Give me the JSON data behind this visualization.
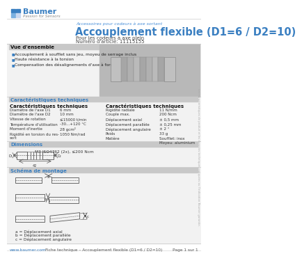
{
  "bg_color": "#ffffff",
  "header": {
    "logo_text": "Baumer",
    "logo_sub": "Passion for Sensors",
    "accessory_label": "Accessoires pour codeurs à axe sortant",
    "title": "Accouplement flexible (D1=6 / D2=10)",
    "subtitle1": "Pour les codeurs à axe plein",
    "subtitle2": "Numéro d'article: 11115155",
    "header_blue": "#4a90d9",
    "title_blue": "#3a7fc1"
  },
  "section_vue": {
    "label": "Vue d'ensemble",
    "bullets": [
      "Accouplement à soufflet sans jeu, moyeu de serrage inclus",
      "Haute résistance à la torsion",
      "Compensation des désalignements d'axe à force de rappel minimale"
    ]
  },
  "section_caract": {
    "label": "Caractéristiques techniques",
    "col1_title": "Caractéristiques techniques",
    "col2_title": "Caractéristiques techniques",
    "col1": [
      [
        "Diamètre de l'axe D1",
        "6 mm"
      ],
      [
        "Diamètre de l'axe D2",
        "10 mm"
      ],
      [
        "Vitesse de rotation",
        "≤15000 t/min"
      ],
      [
        "Température d'utilisation",
        "-30...+120 °C"
      ],
      [
        "Moment d'inertie",
        "28 gcm²"
      ],
      [
        "Rigidité en torsion du res-\nsort",
        "1050 Nm/rad"
      ]
    ],
    "col2": [
      [
        "Rigidité radiale",
        "11 N/mm"
      ],
      [
        "Couple max.",
        "200 Ncm"
      ],
      [
        "Déplacement axial",
        "± 0,5 mm"
      ],
      [
        "Déplacement parallèle",
        "± 0,25 mm"
      ],
      [
        "Déplacement angulaire",
        "± 2 °"
      ],
      [
        "Poids",
        "33 g"
      ],
      [
        "Matière",
        "Soufflet: inox\nMoyeu: aluminium"
      ]
    ]
  },
  "section_dim": {
    "label": "Dimensions",
    "dim_text": "M3 ISO4762 (2x), ≤200 Ncm"
  },
  "section_montage": {
    "label": "Schéma de montage",
    "legend": [
      "a = Déplacement axial",
      "b = Déplacement parallèle",
      "c = Déplacement angulaire"
    ]
  },
  "footer": {
    "url": "www.baumer.com",
    "center_text": "Fiche technique – Accouplement flexible (D1=6 / D2=10)",
    "right_text": "Page 1 sur 1"
  },
  "sidebar_text": "Les caractéristiques de produit et les données techniques indiquées ou l'indication Baumer garantie.",
  "blue_header": "#4a90d9",
  "blue_title": "#3a7fc1",
  "gray_section": "#f2f2f2",
  "gray_label": "#c8c8c8",
  "gray_img": "#b8b8b8",
  "line_color": "#cccccc",
  "text_dark": "#222222",
  "text_mid": "#444444",
  "text_light": "#888888"
}
